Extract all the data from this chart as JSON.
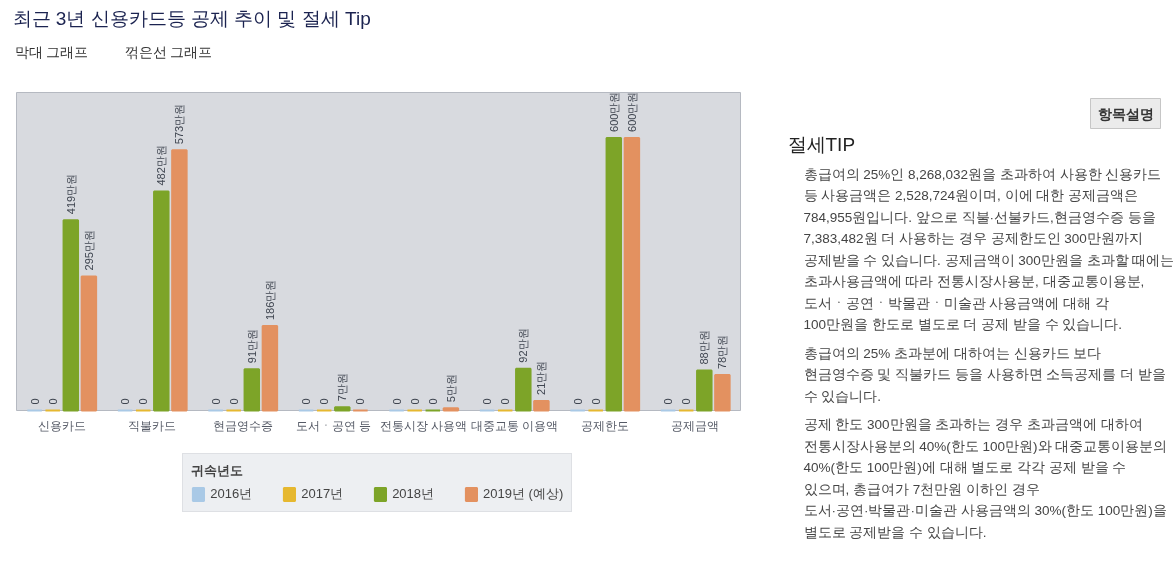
{
  "chart_data": [
    {
      "type": "bar",
      "title": "최근 3년 신용카드등 공제 추이 및 절세 Tip",
      "annotations": [
        "막대 그래프",
        "꺾은선 그래프"
      ],
      "categories": [
        "신용카드",
        "직불카드",
        "현금영수증",
        "도서ㆍ공연 등",
        "전통시장 사용액",
        "대중교통 이용액",
        "공제한도",
        "공제금액"
      ],
      "series": [
        {
          "name": "2016년",
          "color": "#a9c9e6",
          "values": [
            0,
            0,
            0,
            0,
            0,
            0,
            0,
            0
          ],
          "value_labels": [
            "0",
            "0",
            "0",
            "0",
            "0",
            "0",
            "0",
            "0"
          ]
        },
        {
          "name": "2017년",
          "color": "#e6b830",
          "values": [
            0,
            0,
            0,
            0,
            0,
            0,
            0,
            0
          ],
          "value_labels": [
            "0",
            "0",
            "0",
            "0",
            "0",
            "0",
            "0",
            "0"
          ]
        },
        {
          "name": "2018년",
          "color": "#7da428",
          "values": [
            419,
            482,
            91,
            7,
            0,
            92,
            600,
            88
          ],
          "value_labels": [
            "419만원",
            "482만원",
            "91만원",
            "7만원",
            "0",
            "92만원",
            "600만원",
            "88만원"
          ]
        },
        {
          "name": "2019년 (예상)",
          "color": "#e39160",
          "values": [
            295,
            573,
            186,
            0,
            5,
            21,
            600,
            78
          ],
          "value_labels": [
            "295만원",
            "573만원",
            "186만원",
            "0",
            "5만원",
            "21만원",
            "600만원",
            "78만원"
          ]
        }
      ],
      "ylim": [
        0,
        700
      ],
      "tick_labels": "x",
      "legend": "bottom",
      "legend_title": "귀속년도"
    },
    {
      "type": "other",
      "title": "절세TIP",
      "annotations": [
        "항목설명",
        "총급여의 25%인 8,268,032원을 초과하여 사용한 신용카드 등 사용금액은 2,528,724원이며, 이에 대한 공제금액은 784,955원입니다. 앞으로 직불·선불카드,현금영수증 등을 7,383,482원 더 사용하는 경우 공제한도인 300만원까지 공제받을 수 있습니다. 공제금액이 300만원을 초과할 때에는 초과사용금액에 따라 전통시장사용분, 대중교통이용분, 도서ㆍ공연ㆍ박물관ㆍ미술관 사용금액에 대해 각 100만원을 한도로 별도로 더 공제 받을 수 있습니다.",
        "총급여의 25% 초과분에 대하여는 신용카드 보다 현금영수증 및 직불카드 등을 사용하면 소득공제를 더 받을 수 있습니다.",
        "공제 한도 300만원을 초과하는 경우 초과금액에 대하여 전통시장사용분의 40%(한도 100만원)와 대중교통이용분의 40%(한도 100만원)에 대해 별도로 각각 공제 받을 수 있으며, 총급여가 7천만원 이하인 경우 도서·공연·박물관·미술관 사용금액의 30%(한도 100만원)을 별도로 공제받을 수 있습니다."
      ]
    }
  ]
}
